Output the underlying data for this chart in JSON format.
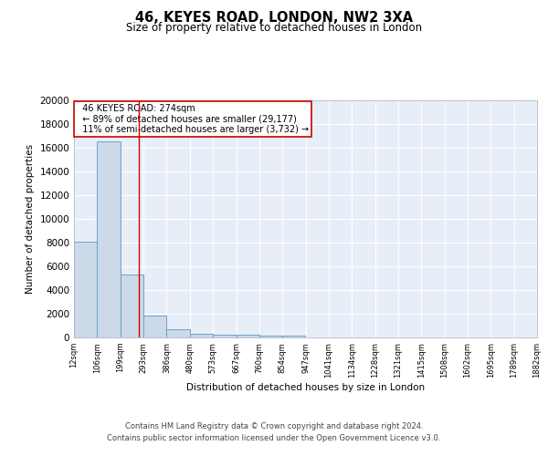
{
  "title": "46, KEYES ROAD, LONDON, NW2 3XA",
  "subtitle": "Size of property relative to detached houses in London",
  "xlabel": "Distribution of detached houses by size in London",
  "ylabel": "Number of detached properties",
  "annotation_line1": "46 KEYES ROAD: 274sqm",
  "annotation_line2": "← 89% of detached houses are smaller (29,177)",
  "annotation_line3": "11% of semi-detached houses are larger (3,732) →",
  "property_size_sqm": 274,
  "bin_edges": [
    12,
    106,
    199,
    293,
    386,
    480,
    573,
    667,
    760,
    854,
    947,
    1041,
    1134,
    1228,
    1321,
    1415,
    1508,
    1602,
    1695,
    1789,
    1882
  ],
  "bar_heights": [
    8100,
    16500,
    5300,
    1850,
    700,
    300,
    220,
    200,
    160,
    130,
    0,
    0,
    0,
    0,
    0,
    0,
    0,
    0,
    0,
    0
  ],
  "bar_color": "#ccd9e8",
  "bar_edge_color": "#6aa0c8",
  "red_line_x": 274,
  "ylim": [
    0,
    20000
  ],
  "yticks": [
    0,
    2000,
    4000,
    6000,
    8000,
    10000,
    12000,
    14000,
    16000,
    18000,
    20000
  ],
  "plot_bg_color": "#e8eef8",
  "grid_color": "#ffffff",
  "footer_line1": "Contains HM Land Registry data © Crown copyright and database right 2024.",
  "footer_line2": "Contains public sector information licensed under the Open Government Licence v3.0."
}
